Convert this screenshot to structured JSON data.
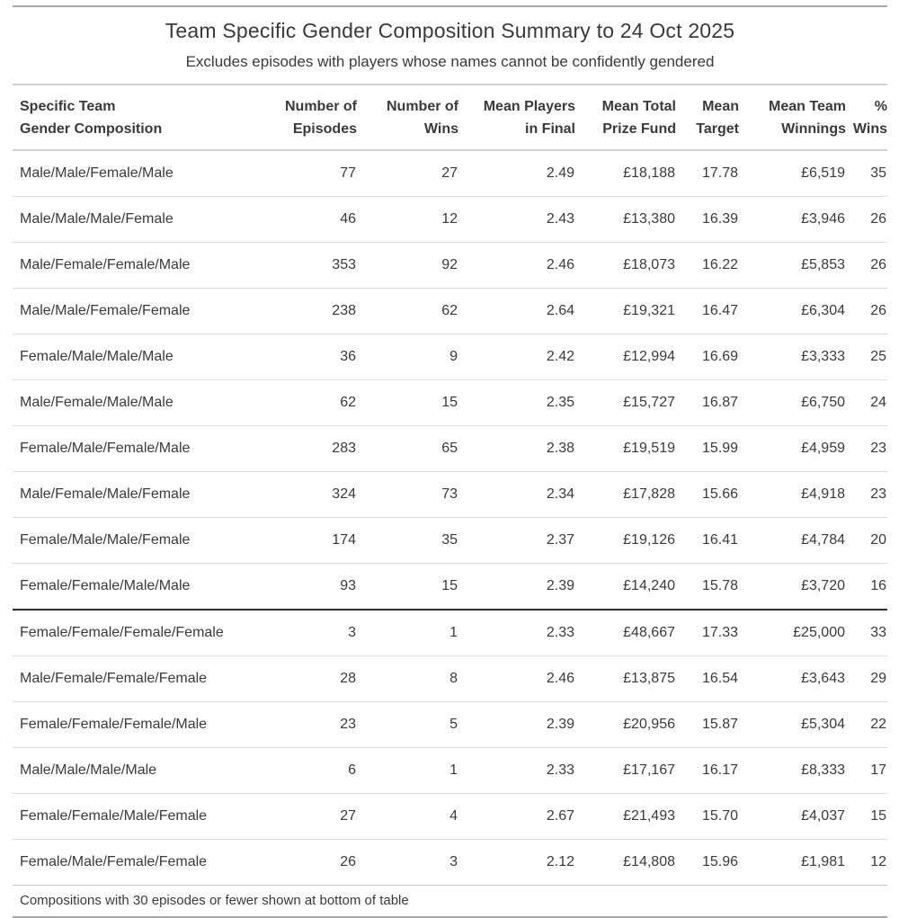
{
  "chart_data": {
    "type": "table",
    "title": "Team Specific Gender Composition Summary to 24 Oct 2025",
    "subtitle": "Excludes episodes with players whose names cannot be confidently gendered",
    "columns": [
      {
        "label": "Specific Team Gender Composition",
        "line1": "Specific Team",
        "line2": "Gender Composition",
        "align": "left"
      },
      {
        "label": "Number of Episodes",
        "line1": "Number of",
        "line2": "Episodes",
        "align": "right"
      },
      {
        "label": "Number of Wins",
        "line1": "Number of",
        "line2": "Wins",
        "align": "right"
      },
      {
        "label": "Mean Players in Final",
        "line1": "Mean Players",
        "line2": "in Final",
        "align": "right"
      },
      {
        "label": "Mean Total Prize Fund",
        "line1": "Mean Total",
        "line2": "Prize Fund",
        "align": "right"
      },
      {
        "label": "Mean Target",
        "line1": "Mean",
        "line2": "Target",
        "align": "right"
      },
      {
        "label": "Mean Team Winnings",
        "line1": "Mean Team",
        "line2": "Winnings",
        "align": "right"
      },
      {
        "label": "% Wins",
        "line1": "%",
        "line2": "Wins",
        "align": "right"
      }
    ],
    "rows": [
      [
        "Male/Male/Female/Male",
        "77",
        "27",
        "2.49",
        "£18,188",
        "17.78",
        "£6,519",
        "35"
      ],
      [
        "Male/Male/Male/Female",
        "46",
        "12",
        "2.43",
        "£13,380",
        "16.39",
        "£3,946",
        "26"
      ],
      [
        "Male/Female/Female/Male",
        "353",
        "92",
        "2.46",
        "£18,073",
        "16.22",
        "£5,853",
        "26"
      ],
      [
        "Male/Male/Female/Female",
        "238",
        "62",
        "2.64",
        "£19,321",
        "16.47",
        "£6,304",
        "26"
      ],
      [
        "Female/Male/Male/Male",
        "36",
        "9",
        "2.42",
        "£12,994",
        "16.69",
        "£3,333",
        "25"
      ],
      [
        "Male/Female/Male/Male",
        "62",
        "15",
        "2.35",
        "£15,727",
        "16.87",
        "£6,750",
        "24"
      ],
      [
        "Female/Male/Female/Male",
        "283",
        "65",
        "2.38",
        "£19,519",
        "15.99",
        "£4,959",
        "23"
      ],
      [
        "Male/Female/Male/Female",
        "324",
        "73",
        "2.34",
        "£17,828",
        "15.66",
        "£4,918",
        "23"
      ],
      [
        "Female/Male/Male/Female",
        "174",
        "35",
        "2.37",
        "£19,126",
        "16.41",
        "£4,784",
        "20"
      ],
      [
        "Female/Female/Male/Male",
        "93",
        "15",
        "2.39",
        "£14,240",
        "15.78",
        "£3,720",
        "16"
      ],
      [
        "Female/Female/Female/Female",
        "3",
        "1",
        "2.33",
        "£48,667",
        "17.33",
        "£25,000",
        "33"
      ],
      [
        "Male/Female/Female/Female",
        "28",
        "8",
        "2.46",
        "£13,875",
        "16.54",
        "£3,643",
        "29"
      ],
      [
        "Female/Female/Female/Male",
        "23",
        "5",
        "2.39",
        "£20,956",
        "15.87",
        "£5,304",
        "22"
      ],
      [
        "Male/Male/Male/Male",
        "6",
        "1",
        "2.33",
        "£17,167",
        "16.17",
        "£8,333",
        "17"
      ],
      [
        "Female/Female/Male/Female",
        "27",
        "4",
        "2.67",
        "£21,493",
        "15.70",
        "£4,037",
        "15"
      ],
      [
        "Female/Male/Female/Female",
        "26",
        "3",
        "2.12",
        "£14,808",
        "15.96",
        "£1,981",
        "12"
      ]
    ],
    "group_break_after_row": 10,
    "footnote": "Compositions with 30 episodes or fewer shown at bottom of table"
  },
  "colors": {
    "text": "#3a3a3a",
    "light_rule": "#dcdcdc",
    "mid_rule": "#d1d1d1",
    "heavy_rule": "#a6a6a6",
    "dark_divider": "#2e2e2e",
    "background": "#ffffff"
  }
}
